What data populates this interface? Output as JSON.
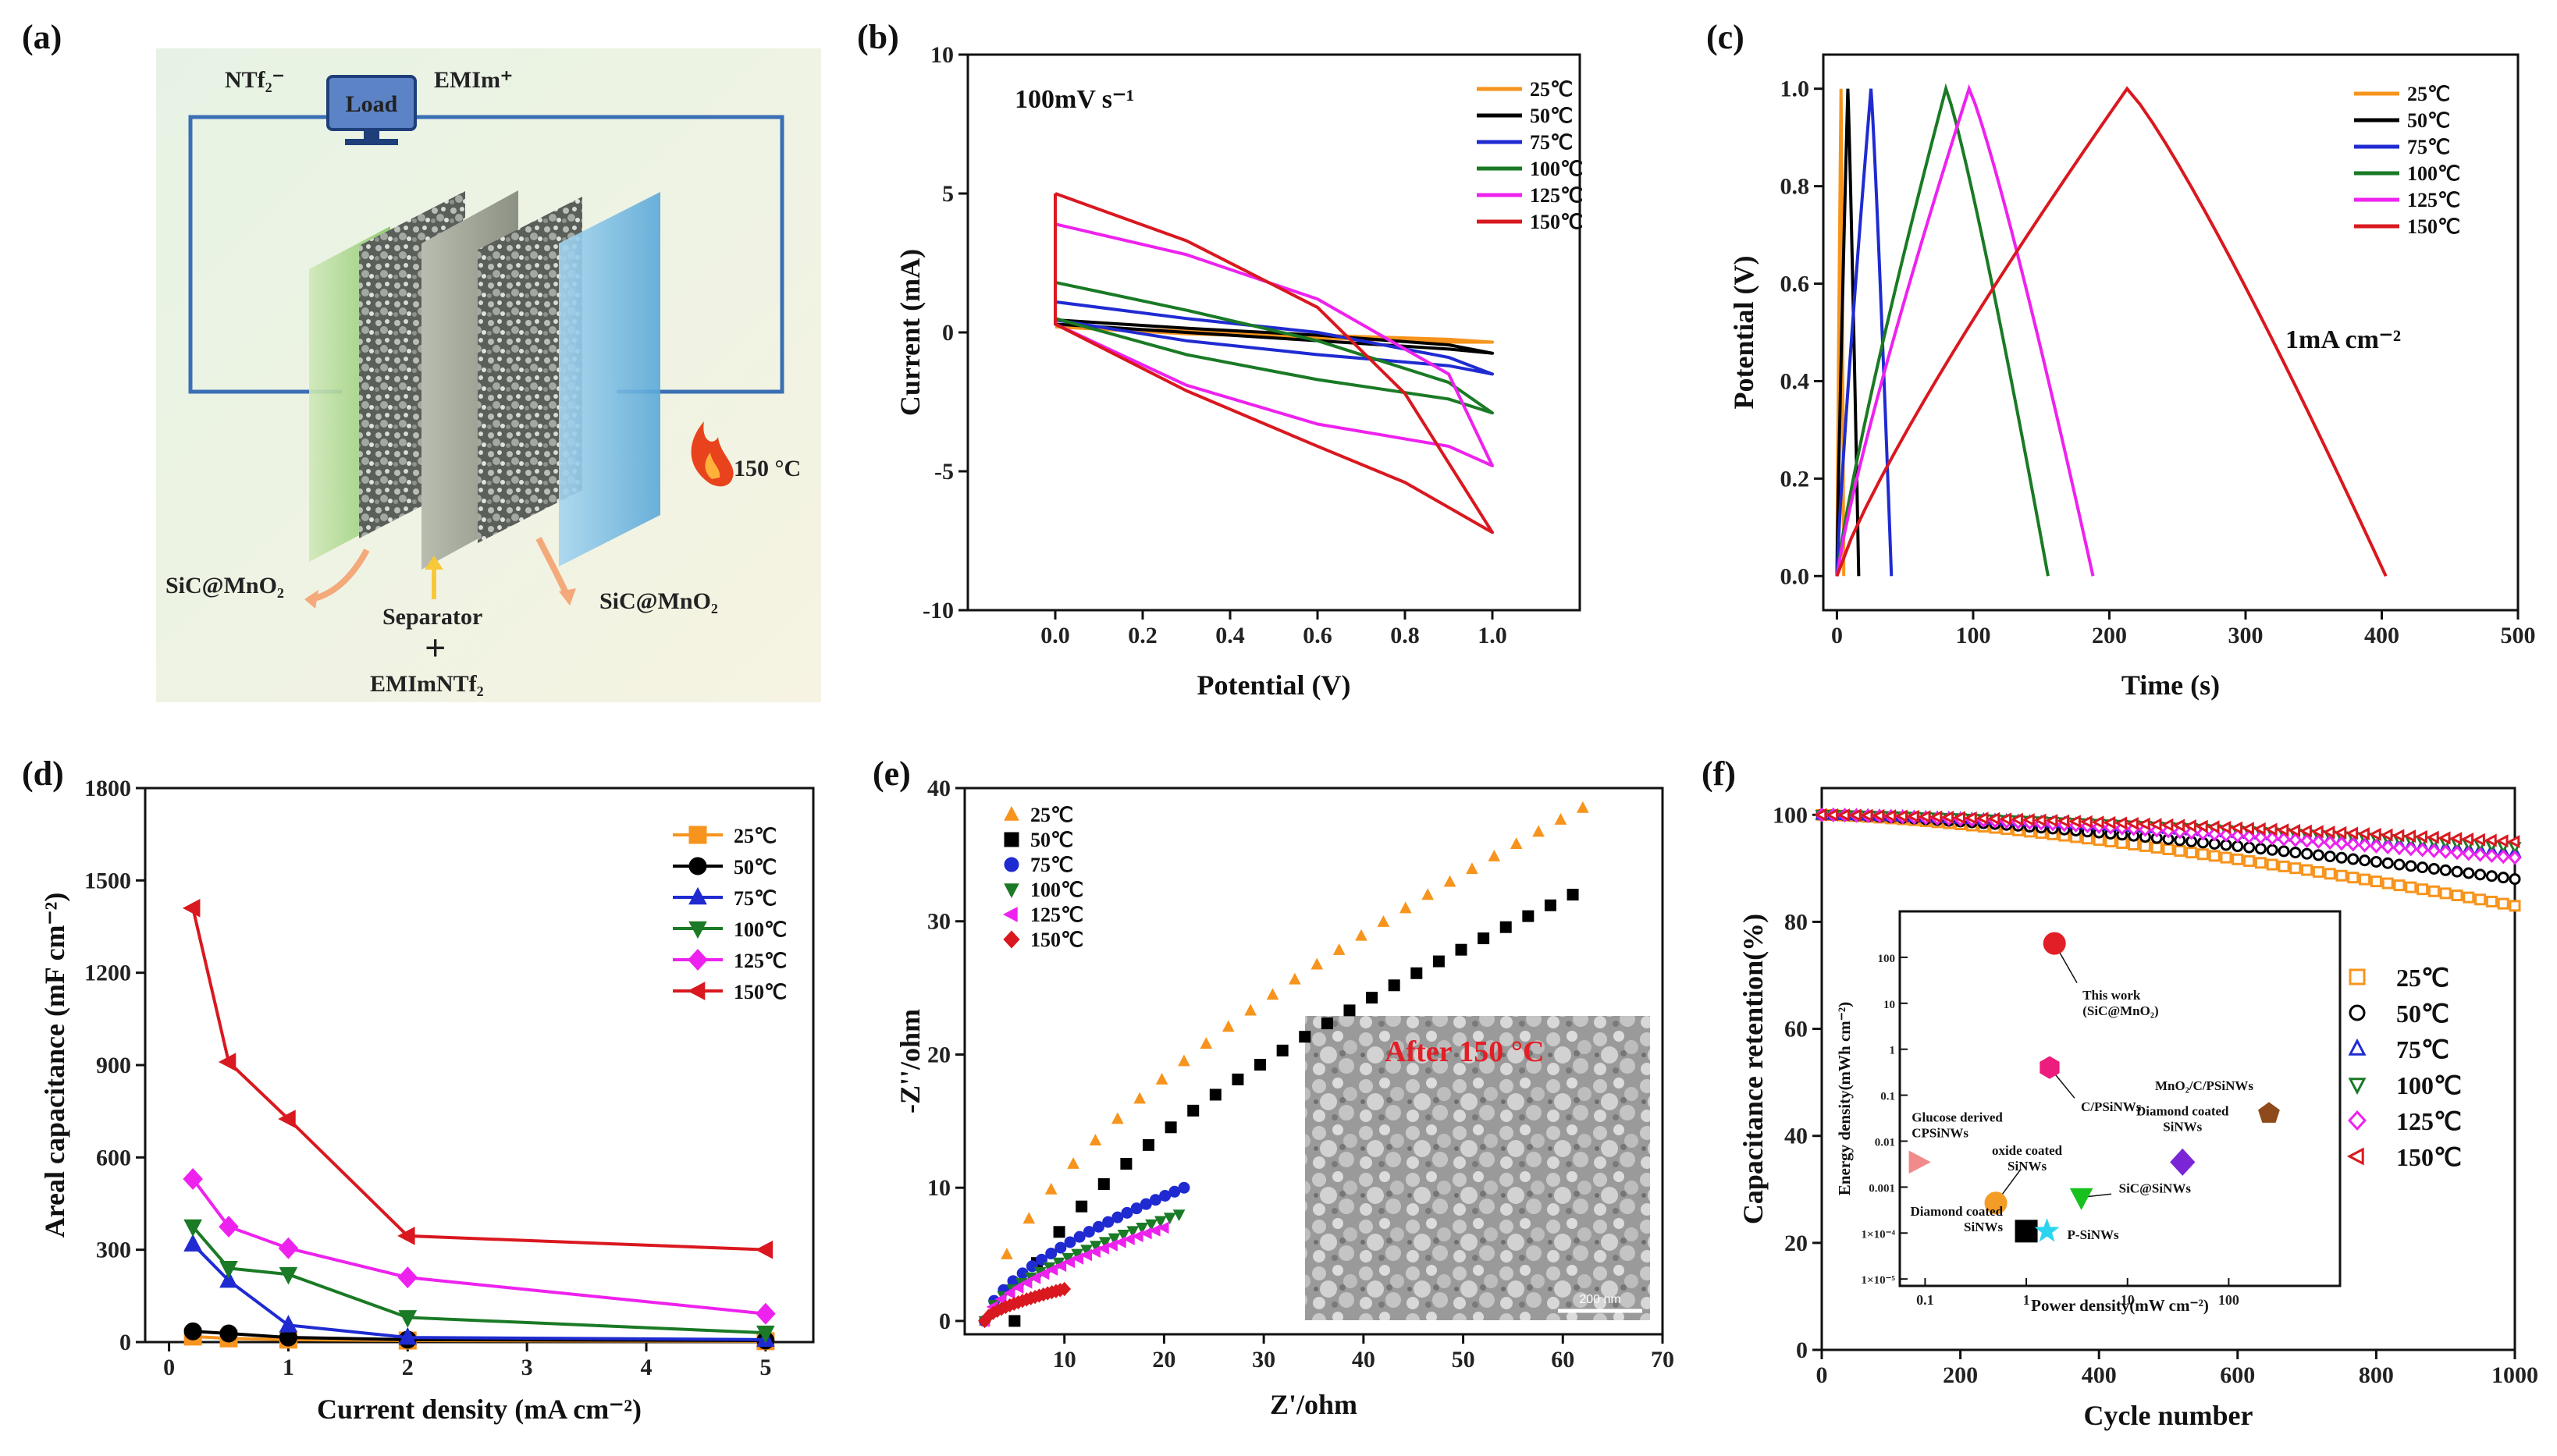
{
  "panels": {
    "a": {
      "label": "(a)"
    },
    "b": {
      "label": "(b)"
    },
    "c": {
      "label": "(c)"
    },
    "d": {
      "label": "(d)"
    },
    "e": {
      "label": "(e)"
    },
    "f": {
      "label": "(f)"
    }
  },
  "schematic": {
    "anion": "NTf₂⁻",
    "cation": "EMIm⁺",
    "load": "Load",
    "temperature": "150 °C",
    "left_electrode": "SiC@MnO₂",
    "right_electrode": "SiC@MnO₂",
    "separator": "Separator",
    "plus": "+",
    "electrolyte": "EMImNTf₂"
  },
  "colors": {
    "25": "#f7941d",
    "50": "#000000",
    "75": "#1f2bd1",
    "100": "#1a7a25",
    "125": "#ee22ee",
    "150": "#d9181f"
  },
  "legend_temps": [
    "25℃",
    "50℃",
    "75℃",
    "100℃",
    "125℃",
    "150℃"
  ],
  "chart_data": [
    {
      "id": "b",
      "type": "line",
      "title": "",
      "annotation": "100mV s⁻¹",
      "xlabel": "Potential (V)",
      "ylabel": "Current (mA)",
      "xlim": [
        -0.2,
        1.2
      ],
      "ylim": [
        -10,
        10
      ],
      "xticks": [
        "0.0",
        "0.2",
        "0.4",
        "0.6",
        "0.8",
        "1.0"
      ],
      "yticks": [
        "-10",
        "-5",
        "0",
        "5",
        "10"
      ],
      "series": [
        {
          "name": "25℃",
          "curve": {
            "top": [
              [
                0,
                0.2
              ],
              [
                0.3,
                0.05
              ],
              [
                0.6,
                -0.1
              ],
              [
                0.9,
                -0.25
              ],
              [
                1.0,
                -0.35
              ]
            ],
            "bottom": [
              [
                0,
                0.2
              ],
              [
                0.3,
                -0.05
              ],
              [
                0.6,
                -0.2
              ],
              [
                0.9,
                -0.35
              ],
              [
                1.0,
                -0.35
              ]
            ]
          }
        },
        {
          "name": "50℃",
          "curve": {
            "top": [
              [
                0,
                0.45
              ],
              [
                0.3,
                0.15
              ],
              [
                0.6,
                -0.1
              ],
              [
                0.9,
                -0.45
              ],
              [
                1.0,
                -0.75
              ]
            ],
            "bottom": [
              [
                0,
                0.3
              ],
              [
                0.3,
                0.0
              ],
              [
                0.6,
                -0.3
              ],
              [
                0.9,
                -0.6
              ],
              [
                1.0,
                -0.75
              ]
            ]
          }
        },
        {
          "name": "75℃",
          "curve": {
            "top": [
              [
                0,
                1.1
              ],
              [
                0.3,
                0.5
              ],
              [
                0.6,
                0.0
              ],
              [
                0.9,
                -0.9
              ],
              [
                1.0,
                -1.5
              ]
            ],
            "bottom": [
              [
                0,
                0.45
              ],
              [
                0.3,
                -0.3
              ],
              [
                0.6,
                -0.8
              ],
              [
                0.9,
                -1.2
              ],
              [
                1.0,
                -1.5
              ]
            ]
          }
        },
        {
          "name": "100℃",
          "curve": {
            "top": [
              [
                0,
                1.8
              ],
              [
                0.3,
                0.8
              ],
              [
                0.6,
                -0.3
              ],
              [
                0.9,
                -1.8
              ],
              [
                1.0,
                -2.9
              ]
            ],
            "bottom": [
              [
                0,
                0.5
              ],
              [
                0.3,
                -0.8
              ],
              [
                0.6,
                -1.7
              ],
              [
                0.9,
                -2.4
              ],
              [
                1.0,
                -2.9
              ]
            ]
          }
        },
        {
          "name": "125℃",
          "curve": {
            "top": [
              [
                0,
                3.9
              ],
              [
                0.3,
                2.8
              ],
              [
                0.6,
                1.2
              ],
              [
                0.9,
                -1.5
              ],
              [
                1.0,
                -4.8
              ]
            ],
            "bottom": [
              [
                0,
                0.3
              ],
              [
                0.3,
                -1.9
              ],
              [
                0.6,
                -3.3
              ],
              [
                0.9,
                -4.1
              ],
              [
                1.0,
                -4.8
              ]
            ]
          }
        },
        {
          "name": "150℃",
          "curve": {
            "top": [
              [
                0,
                5.0
              ],
              [
                0.3,
                3.3
              ],
              [
                0.6,
                0.9
              ],
              [
                0.8,
                -2.2
              ],
              [
                1.0,
                -7.2
              ]
            ],
            "bottom": [
              [
                0,
                0.3
              ],
              [
                0.3,
                -2.1
              ],
              [
                0.6,
                -4.1
              ],
              [
                0.8,
                -5.4
              ],
              [
                1.0,
                -7.2
              ]
            ]
          }
        }
      ]
    },
    {
      "id": "c",
      "type": "line",
      "annotation": "1mA cm⁻²",
      "xlabel": "Time (s)",
      "ylabel": "Potential (V)",
      "xlim": [
        -10,
        500
      ],
      "ylim": [
        -0.07,
        1.07
      ],
      "xticks": [
        "0",
        "100",
        "200",
        "300",
        "400",
        "500"
      ],
      "yticks": [
        "0.0",
        "0.2",
        "0.4",
        "0.6",
        "0.8",
        "1.0"
      ],
      "series": [
        {
          "name": "25℃",
          "peak_time": 3,
          "end_time": 5
        },
        {
          "name": "50℃",
          "peak_time": 8,
          "end_time": 16
        },
        {
          "name": "75℃",
          "peak_time": 25,
          "end_time": 40
        },
        {
          "name": "100℃",
          "peak_time": 80,
          "end_time": 155
        },
        {
          "name": "125℃",
          "peak_time": 97,
          "end_time": 188
        },
        {
          "name": "150℃",
          "peak_time": 213,
          "end_time": 403
        }
      ]
    },
    {
      "id": "d",
      "type": "line",
      "xlabel": "Current density (mA cm⁻²)",
      "ylabel": "Areal capacitance (mF cm⁻²)",
      "xlim": [
        -0.2,
        5.4
      ],
      "ylim": [
        0,
        1800
      ],
      "xticks": [
        "0",
        "1",
        "2",
        "3",
        "4",
        "5"
      ],
      "yticks": [
        "0",
        "300",
        "600",
        "900",
        "1200",
        "1500",
        "1800"
      ],
      "x": [
        0.2,
        0.5,
        1,
        2,
        5
      ],
      "series": [
        {
          "name": "25℃",
          "marker": "square",
          "values": [
            18,
            12,
            8,
            5,
            3
          ]
        },
        {
          "name": "50℃",
          "marker": "circle",
          "values": [
            35,
            28,
            15,
            8,
            5
          ]
        },
        {
          "name": "75℃",
          "marker": "triangle",
          "values": [
            318,
            200,
            55,
            15,
            8
          ]
        },
        {
          "name": "100℃",
          "marker": "tri-down",
          "values": [
            375,
            240,
            220,
            80,
            30
          ]
        },
        {
          "name": "125℃",
          "marker": "diamond",
          "values": [
            530,
            375,
            305,
            210,
            92
          ]
        },
        {
          "name": "150℃",
          "marker": "tri-left",
          "values": [
            1410,
            910,
            725,
            345,
            300
          ]
        }
      ]
    },
    {
      "id": "e",
      "type": "scatter",
      "xlabel": "Z'/ohm",
      "ylabel": "-Z''/ohm",
      "xlim": [
        0,
        70
      ],
      "ylim": [
        -1,
        40
      ],
      "xticks": [
        "10",
        "20",
        "30",
        "40",
        "50",
        "60",
        "70"
      ],
      "yticks": [
        "0",
        "10",
        "20",
        "30",
        "40"
      ],
      "inset": {
        "label": "After 150 °C",
        "scalebar": "200 nm"
      },
      "series": [
        {
          "name": "25℃",
          "marker": "triangle",
          "x_start": 2,
          "x_end": 62,
          "y_end": 38.5,
          "n": 28
        },
        {
          "name": "50℃",
          "marker": "square",
          "x_start": 5,
          "x_end": 61,
          "y_end": 32,
          "n": 26
        },
        {
          "name": "75℃",
          "marker": "circle",
          "x_start": 2,
          "x_end": 22,
          "y_end": 10,
          "n": 22
        },
        {
          "name": "100℃",
          "marker": "tri-down",
          "x_start": 2,
          "x_end": 21.5,
          "y_end": 8,
          "n": 22
        },
        {
          "name": "125℃",
          "marker": "tri-left",
          "x_start": 2,
          "x_end": 20,
          "y_end": 7,
          "n": 22
        },
        {
          "name": "150℃",
          "marker": "diamond",
          "x_start": 2,
          "x_end": 10,
          "y_end": 2.4,
          "n": 20
        }
      ]
    },
    {
      "id": "f",
      "type": "scatter",
      "xlabel": "Cycle number",
      "ylabel": "Capacitance retention(%)",
      "xlim": [
        0,
        1000
      ],
      "ylim": [
        0,
        105
      ],
      "xticks": [
        "0",
        "200",
        "400",
        "600",
        "800",
        "1000"
      ],
      "yticks": [
        "0",
        "20",
        "40",
        "60",
        "80",
        "100"
      ],
      "series": [
        {
          "name": "25℃",
          "marker": "square",
          "end_value": 83
        },
        {
          "name": "50℃",
          "marker": "circle",
          "end_value": 88
        },
        {
          "name": "75℃",
          "marker": "triangle",
          "end_value": 93
        },
        {
          "name": "100℃",
          "marker": "tri-down",
          "end_value": 94
        },
        {
          "name": "125℃",
          "marker": "diamond",
          "end_value": 92
        },
        {
          "name": "150℃",
          "marker": "tri-left",
          "end_value": 95
        }
      ],
      "inset": {
        "type": "scatter",
        "xlabel": "Power density(mW cm⁻²)",
        "ylabel": "Energy density(mWh cm⁻²)",
        "xticks": [
          "0.1",
          "1",
          "10",
          "100"
        ],
        "yticks": [
          "1×10⁻⁵",
          "1×10⁻⁴",
          "0.001",
          "0.01",
          "0.1",
          "1",
          "10",
          "100"
        ],
        "points": [
          {
            "name": "This work",
            "sub": "(SiC@MnO₂)",
            "power": 1.9,
            "energy": 200,
            "color": "#e21f26",
            "marker": "circle"
          },
          {
            "name": "C/PSiNWs",
            "power": 1.7,
            "energy": 0.4,
            "color": "#ec1d7d",
            "marker": "hexagon"
          },
          {
            "name": "MnO₂/C/PSiNWs",
            "power": 250,
            "energy": 0.04,
            "color": "#8e4a1a",
            "marker": "pentagon"
          },
          {
            "name": "Glucose derived",
            "sub": "CPSiNWs",
            "power": 0.085,
            "energy": 0.0035,
            "color": "#f18a8a",
            "marker": "tri-right"
          },
          {
            "name": "Diamond coated",
            "sub": "SiNWs",
            "power": 35,
            "energy": 0.0035,
            "color": "#7b26d6",
            "marker": "diamond"
          },
          {
            "name": "oxide coated",
            "sub": "SiNWs",
            "power": 0.5,
            "energy": 0.00045,
            "color": "#f39c26",
            "marker": "circle"
          },
          {
            "name": "SiC@SiNWs",
            "power": 3.5,
            "energy": 0.0006,
            "color": "#19c11e",
            "marker": "tri-down"
          },
          {
            "name": "Diamond coated",
            "sub": "SiNWs",
            "power": 1.0,
            "energy": 0.00011,
            "color": "#000000",
            "marker": "square"
          },
          {
            "name": "P-SiNWs",
            "power": 1.6,
            "energy": 0.00011,
            "color": "#2dd4f0",
            "marker": "star"
          }
        ]
      }
    }
  ]
}
